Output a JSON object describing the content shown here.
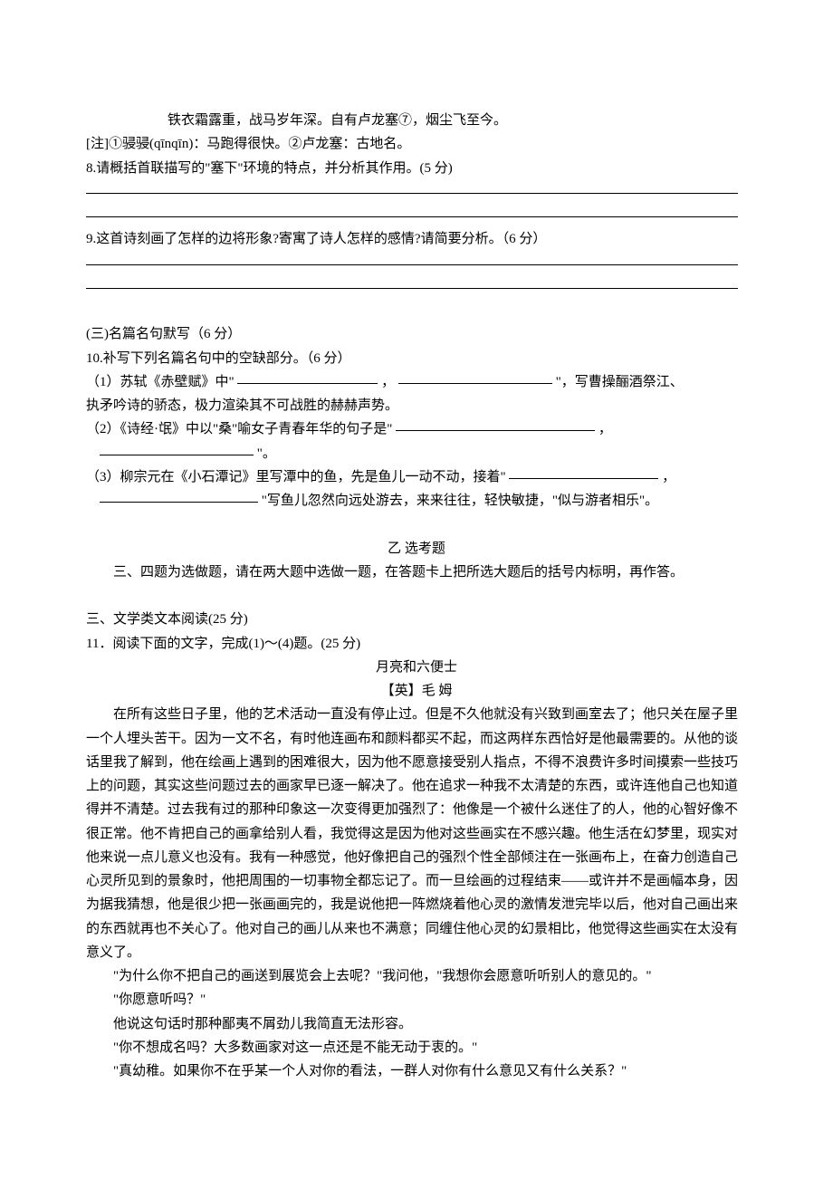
{
  "poem": {
    "line1": "铁衣霜露重，战马岁年深。自有卢龙塞⑦，烟尘飞至今。",
    "note": "[注]①骎骎(qīnqīn)：马跑得很快。②卢龙塞：古地名。"
  },
  "q8": {
    "text": "8.请概括首联描写的\"塞下\"环境的特点，并分析其作用。(5 分)"
  },
  "q9": {
    "text": "9.这首诗刻画了怎样的边将形象?寄寓了诗人怎样的感情?请简要分析。（6 分）"
  },
  "section3": {
    "title": "(三)名篇名句默写（6 分）",
    "q10": {
      "intro": "10.补写下列名篇名句中的空缺部分。（6 分）",
      "item1_pre": "（1）苏轼《赤壁赋》中\"",
      "item1_mid": "，",
      "item1_post": "\"，写曹操酾酒祭江、",
      "item1_cont": "执矛吟诗的骄态，极力渲染其不可战胜的赫赫声势。",
      "item2_pre": "（2）《诗经·氓》中以\"桑\"喻女子青春年华的句子是\"",
      "item2_mid": "，",
      "item2_post": "\"。",
      "item3_pre": "（3）柳宗元在《小石潭记》里写潭中的鱼，先是鱼儿一动不动，接着\"",
      "item3_mid": " ，",
      "item3_post": "\"写鱼儿忽然向远处游去，来来往往，轻快敏捷，\"似与游者相乐\"。"
    }
  },
  "section_yi": {
    "title": "乙    选考题",
    "intro": "三、四题为选做题，请在两大题中选做一题，在答题卡上把所选大题后的括号内标明，再作答。"
  },
  "section_literary": {
    "title": "三、文学类文本阅读(25 分)",
    "q11_intro": "11．阅读下面的文字，完成(1)～(4)题。(25 分)",
    "story_title": "月亮和六便士",
    "story_author": "【英】毛    姆",
    "para1": "在所有这些日子里，他的艺术活动一直没有停止过。但是不久他就没有兴致到画室去了；他只关在屋子里一个人埋头苦干。因为一文不名，有时他连画布和颜料都买不起，而这两样东西恰好是他最需要的。从他的谈话里我了解到，他在绘画上遇到的困难很大，因为他不愿意接受别人指点，不得不浪费许多时间摸索一些技巧上的问题，其实这些问题过去的画家早已逐一解决了。他在追求一种我不太清楚的东西，或许连他自己也知道得并不清楚。过去我有过的那种印象这一次变得更加强烈了：他像是一个被什么迷住了的人，他的心智好像不很正常。他不肯把自己的画拿给别人看，我觉得这是因为他对这些画实在不感兴趣。他生活在幻梦里，现实对他来说一点儿意义也没有。我有一种感觉，他好像把自己的强烈个性全部倾注在一张画布上，在奋力创造自己心灵所见到的景象时，他把周围的一切事物全都忘记了。而一旦绘画的过程结束——或许并不是画幅本身，因为据我猜想，他是很少把一张画画完的，我是说他把一阵燃烧着他心灵的激情发泄完毕以后，他对自己画出来的东西就再也不关心了。他对自己的画儿从来也不满意；同缠住他心灵的幻景相比，他觉得这些画实在太没有意义了。",
    "dialog1": "\"为什么你不把自己的画送到展览会上去呢？\"我问他，\"我想你会愿意听听别人的意见的。\"",
    "dialog2": "\"你愿意听吗？\"",
    "narr1": "他说这句话时那种鄙夷不屑劲儿我简直无法形容。",
    "dialog3": "\"你不想成名吗？大多数画家对这一点还是不能无动于衷的。\"",
    "dialog4": "\"真幼稚。如果你不在乎某一个人对你的看法，一群人对你有什么意见又有什么关系？\""
  },
  "blank_widths": {
    "long": "720px",
    "fill_q10_1": "155px",
    "fill_q10_2": "170px",
    "fill_q10_3": "220px",
    "fill_q10_4": "170px",
    "fill_q10_5": "165px",
    "fill_q10_6": "175px"
  }
}
